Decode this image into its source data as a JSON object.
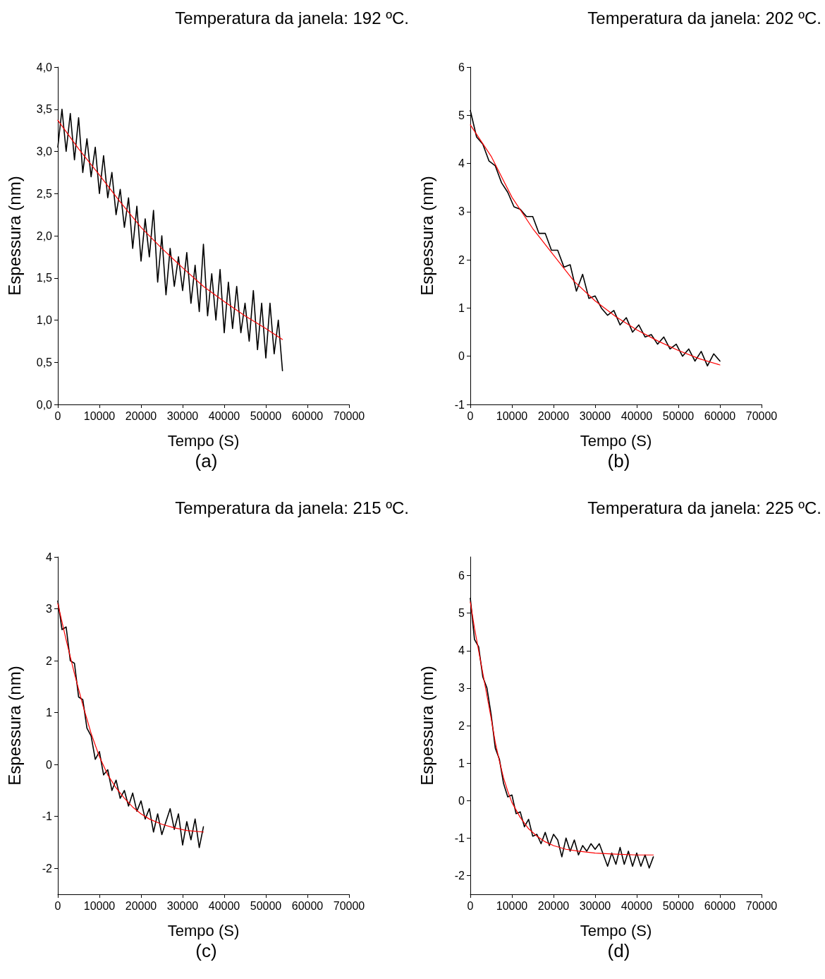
{
  "chart_data": [
    {
      "type": "line",
      "title": "Temperatura da janela: 192 ºC.",
      "xlabel": "Tempo (S)",
      "ylabel": "Espessura (nm)",
      "annotations": [
        "(a)"
      ],
      "xlim": [
        0,
        70000
      ],
      "xticks": [
        0,
        10000,
        20000,
        30000,
        40000,
        50000,
        60000,
        70000
      ],
      "ylim": [
        0,
        4
      ],
      "yticks": [
        {
          "value": 0,
          "label": "0,0"
        },
        {
          "value": 0.5,
          "label": "0,5"
        },
        {
          "value": 1,
          "label": "1,0"
        },
        {
          "value": 1.5,
          "label": "1,5"
        },
        {
          "value": 2,
          "label": "2,0"
        },
        {
          "value": 2.5,
          "label": "2,5"
        },
        {
          "value": 3,
          "label": "3,0"
        },
        {
          "value": 3.5,
          "label": "3,5"
        },
        {
          "value": 4,
          "label": "4,0"
        }
      ],
      "marker": "none",
      "line_style": "solid",
      "x": [
        0,
        1000,
        2000,
        3000,
        4000,
        5000,
        6000,
        7000,
        8000,
        9000,
        10000,
        11000,
        12000,
        13000,
        14000,
        15000,
        16000,
        17000,
        18000,
        19000,
        20000,
        21000,
        22000,
        23000,
        24000,
        25000,
        26000,
        27000,
        28000,
        29000,
        30000,
        31000,
        32000,
        33000,
        34000,
        35000,
        36000,
        37000,
        38000,
        39000,
        40000,
        41000,
        42000,
        43000,
        44000,
        45000,
        46000,
        47000,
        48000,
        49000,
        50000,
        51000,
        52000,
        53000,
        54000
      ],
      "series": [
        {
          "color": "#000000",
          "values": [
            3.05,
            3.5,
            3.0,
            3.45,
            2.9,
            3.4,
            2.75,
            3.15,
            2.7,
            3.05,
            2.5,
            2.95,
            2.45,
            2.75,
            2.25,
            2.55,
            2.1,
            2.45,
            1.85,
            2.35,
            1.7,
            2.2,
            1.75,
            2.3,
            1.45,
            2.0,
            1.3,
            1.85,
            1.4,
            1.75,
            1.35,
            1.8,
            1.2,
            1.65,
            1.1,
            1.9,
            1.05,
            1.55,
            1.0,
            1.6,
            0.85,
            1.45,
            0.9,
            1.4,
            0.85,
            1.2,
            0.75,
            1.35,
            0.65,
            1.2,
            0.55,
            1.2,
            0.6,
            1.0,
            0.4
          ]
        },
        {
          "color": "#ff0000",
          "x": [
            0,
            5000,
            10000,
            15000,
            20000,
            25000,
            30000,
            35000,
            40000,
            45000,
            50000,
            54000
          ],
          "values": [
            3.37,
            3.03,
            2.72,
            2.4,
            2.1,
            1.85,
            1.62,
            1.4,
            1.22,
            1.05,
            0.9,
            0.77
          ]
        }
      ]
    },
    {
      "type": "line",
      "title": "Temperatura da janela: 202 ºC.",
      "xlabel": "Tempo (S)",
      "ylabel": "Espessura (nm)",
      "annotations": [
        "(b)"
      ],
      "xlim": [
        0,
        70000
      ],
      "xticks": [
        0,
        10000,
        20000,
        30000,
        40000,
        50000,
        60000,
        70000
      ],
      "ylim": [
        -1,
        6
      ],
      "yticks": [
        -1,
        0,
        1,
        2,
        3,
        4,
        5,
        6
      ],
      "marker": "none",
      "line_style": "solid",
      "x": [
        0,
        1500,
        3000,
        4500,
        6000,
        7500,
        9000,
        10500,
        12000,
        13500,
        15000,
        16500,
        18000,
        19500,
        21000,
        22500,
        24000,
        25500,
        27000,
        28500,
        30000,
        31500,
        33000,
        34500,
        36000,
        37500,
        39000,
        40500,
        42000,
        43500,
        45000,
        46500,
        48000,
        49500,
        51000,
        52500,
        54000,
        55500,
        57000,
        58500,
        60000
      ],
      "series": [
        {
          "color": "#000000",
          "values": [
            5.1,
            4.55,
            4.4,
            4.05,
            3.95,
            3.6,
            3.4,
            3.1,
            3.05,
            2.9,
            2.9,
            2.55,
            2.55,
            2.2,
            2.2,
            1.85,
            1.9,
            1.35,
            1.7,
            1.2,
            1.25,
            1.0,
            0.85,
            0.95,
            0.65,
            0.8,
            0.5,
            0.65,
            0.4,
            0.45,
            0.25,
            0.4,
            0.15,
            0.25,
            0.0,
            0.15,
            -0.1,
            0.1,
            -0.2,
            0.05,
            -0.1
          ]
        },
        {
          "color": "#ff0000",
          "x": [
            0,
            5000,
            10000,
            15000,
            20000,
            25000,
            30000,
            35000,
            40000,
            45000,
            50000,
            55000,
            60000
          ],
          "values": [
            4.8,
            4.15,
            3.3,
            2.65,
            2.1,
            1.55,
            1.15,
            0.82,
            0.55,
            0.32,
            0.12,
            -0.05,
            -0.18
          ]
        }
      ]
    },
    {
      "type": "line",
      "title": "Temperatura da janela: 215 ºC.",
      "xlabel": "Tempo (S)",
      "ylabel": "Espessura (nm)",
      "annotations": [
        "(c)"
      ],
      "xlim": [
        0,
        70000
      ],
      "xticks": [
        0,
        10000,
        20000,
        30000,
        40000,
        50000,
        60000,
        70000
      ],
      "ylim": [
        -2.5,
        4
      ],
      "yticks": [
        -2,
        -1,
        0,
        1,
        2,
        3,
        4
      ],
      "marker": "none",
      "line_style": "solid",
      "x": [
        0,
        1000,
        2000,
        3000,
        4000,
        5000,
        6000,
        7000,
        8000,
        9000,
        10000,
        11000,
        12000,
        13000,
        14000,
        15000,
        16000,
        17000,
        18000,
        19000,
        20000,
        21000,
        22000,
        23000,
        24000,
        25000,
        26000,
        27000,
        28000,
        29000,
        30000,
        31000,
        32000,
        33000,
        34000,
        35000
      ],
      "series": [
        {
          "color": "#000000",
          "values": [
            3.15,
            2.6,
            2.65,
            2.0,
            1.95,
            1.3,
            1.25,
            0.7,
            0.55,
            0.1,
            0.25,
            -0.2,
            -0.1,
            -0.5,
            -0.3,
            -0.65,
            -0.5,
            -0.8,
            -0.55,
            -0.9,
            -0.7,
            -1.05,
            -0.85,
            -1.3,
            -0.95,
            -1.35,
            -1.1,
            -0.85,
            -1.25,
            -0.95,
            -1.55,
            -1.1,
            -1.45,
            -1.05,
            -1.6,
            -1.2
          ]
        },
        {
          "color": "#ff0000",
          "x": [
            0,
            2000,
            4000,
            6000,
            8000,
            10000,
            12000,
            14000,
            16000,
            18000,
            20000,
            22000,
            25000,
            28000,
            31000,
            35000
          ],
          "values": [
            3.1,
            2.4,
            1.75,
            1.15,
            0.6,
            0.15,
            -0.2,
            -0.45,
            -0.65,
            -0.82,
            -0.95,
            -1.05,
            -1.15,
            -1.22,
            -1.27,
            -1.3
          ]
        }
      ]
    },
    {
      "type": "line",
      "title": "Temperatura da janela: 225 ºC.",
      "xlabel": "Tempo (S)",
      "ylabel": "Espessura (nm)",
      "annotations": [
        "(d)"
      ],
      "xlim": [
        0,
        70000
      ],
      "xticks": [
        0,
        10000,
        20000,
        30000,
        40000,
        50000,
        60000,
        70000
      ],
      "ylim": [
        -2.5,
        6.5
      ],
      "yticks": [
        -2,
        -1,
        0,
        1,
        2,
        3,
        4,
        5,
        6
      ],
      "marker": "none",
      "line_style": "solid",
      "x": [
        0,
        1000,
        2000,
        3000,
        4000,
        5000,
        6000,
        7000,
        8000,
        9000,
        10000,
        11000,
        12000,
        13000,
        14000,
        15000,
        16000,
        17000,
        18000,
        19000,
        20000,
        21000,
        22000,
        23000,
        24000,
        25000,
        26000,
        27000,
        28000,
        29000,
        30000,
        31000,
        32000,
        33000,
        34000,
        35000,
        36000,
        37000,
        38000,
        39000,
        40000,
        41000,
        42000,
        43000,
        44000
      ],
      "series": [
        {
          "color": "#000000",
          "values": [
            5.4,
            4.3,
            4.1,
            3.3,
            3.0,
            2.3,
            1.4,
            1.1,
            0.45,
            0.1,
            0.15,
            -0.35,
            -0.3,
            -0.7,
            -0.5,
            -0.95,
            -0.9,
            -1.15,
            -0.85,
            -1.2,
            -0.9,
            -1.05,
            -1.5,
            -1.0,
            -1.35,
            -1.05,
            -1.45,
            -1.2,
            -1.35,
            -1.15,
            -1.3,
            -1.15,
            -1.45,
            -1.75,
            -1.4,
            -1.7,
            -1.25,
            -1.7,
            -1.35,
            -1.75,
            -1.4,
            -1.75,
            -1.45,
            -1.8,
            -1.5
          ]
        },
        {
          "color": "#ff0000",
          "x": [
            0,
            1000,
            2000,
            3000,
            4000,
            5000,
            6000,
            7000,
            8000,
            9000,
            10000,
            12000,
            14000,
            16000,
            18000,
            20000,
            23000,
            26000,
            30000,
            35000,
            40000,
            44000
          ],
          "values": [
            5.3,
            4.6,
            4.0,
            3.4,
            2.8,
            2.2,
            1.55,
            1.05,
            0.6,
            0.25,
            -0.05,
            -0.45,
            -0.75,
            -0.95,
            -1.1,
            -1.2,
            -1.3,
            -1.35,
            -1.4,
            -1.43,
            -1.45,
            -1.45
          ]
        }
      ]
    }
  ]
}
